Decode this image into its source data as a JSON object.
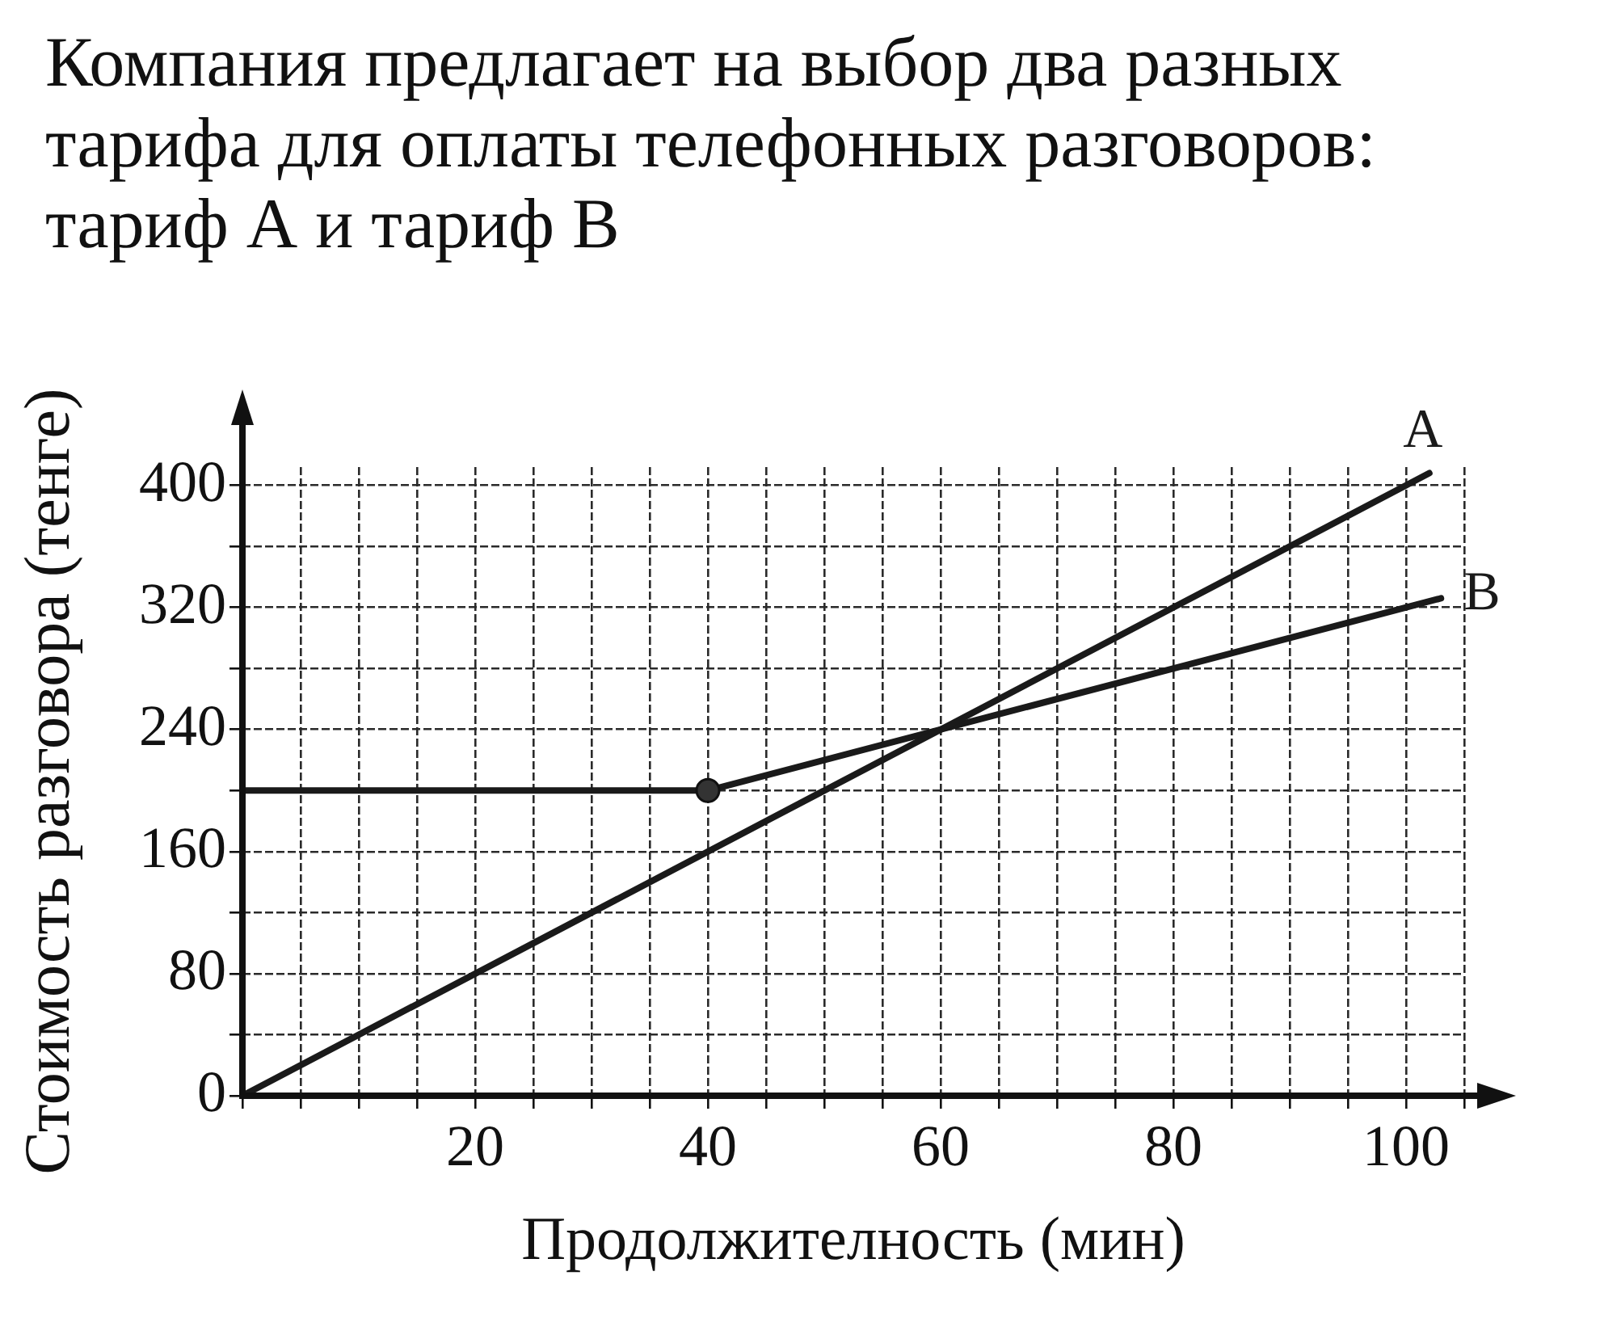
{
  "chart_data": {
    "type": "line",
    "title": "Компания предлагает на выбор два разных тарифа для оплаты телефонных разговоров: тариф А и тариф В",
    "xlabel": "Продолжителность (мин)",
    "ylabel": "Стоимость разговора (тенге)",
    "xlim": [
      0,
      105
    ],
    "ylim": [
      0,
      412
    ],
    "xticks": [
      {
        "value": 0,
        "label": null
      },
      {
        "value": 5,
        "label": null
      },
      {
        "value": 10,
        "label": null
      },
      {
        "value": 15,
        "label": null
      },
      20,
      {
        "value": 25,
        "label": null
      },
      {
        "value": 30,
        "label": null
      },
      {
        "value": 35,
        "label": null
      },
      40,
      {
        "value": 45,
        "label": null
      },
      {
        "value": 50,
        "label": null
      },
      {
        "value": 55,
        "label": null
      },
      60,
      {
        "value": 65,
        "label": null
      },
      {
        "value": 70,
        "label": null
      },
      {
        "value": 75,
        "label": null
      },
      80,
      {
        "value": 85,
        "label": null
      },
      {
        "value": 90,
        "label": null
      },
      {
        "value": 95,
        "label": null
      },
      100,
      {
        "value": 105,
        "label": null
      }
    ],
    "yticks": [
      0,
      {
        "value": 40,
        "label": null
      },
      80,
      {
        "value": 120,
        "label": null
      },
      160,
      {
        "value": 200,
        "label": null
      },
      240,
      {
        "value": 280,
        "label": null
      },
      320,
      {
        "value": 360,
        "label": null
      },
      400
    ],
    "grid": true,
    "legend": false,
    "line_style": "solid",
    "marker": "none",
    "series": [
      {
        "name": "A",
        "color": "#1a1a1a",
        "x": [
          0,
          102
        ],
        "values": [
          0,
          408
        ]
      },
      {
        "name": "B",
        "color": "#1a1a1a",
        "x": [
          0,
          40,
          103
        ],
        "values": [
          200,
          200,
          326
        ]
      },
      {
        "type": "scatter",
        "color": "#333333",
        "x": [
          40
        ],
        "values": [
          200
        ],
        "marker": "circle"
      }
    ]
  }
}
